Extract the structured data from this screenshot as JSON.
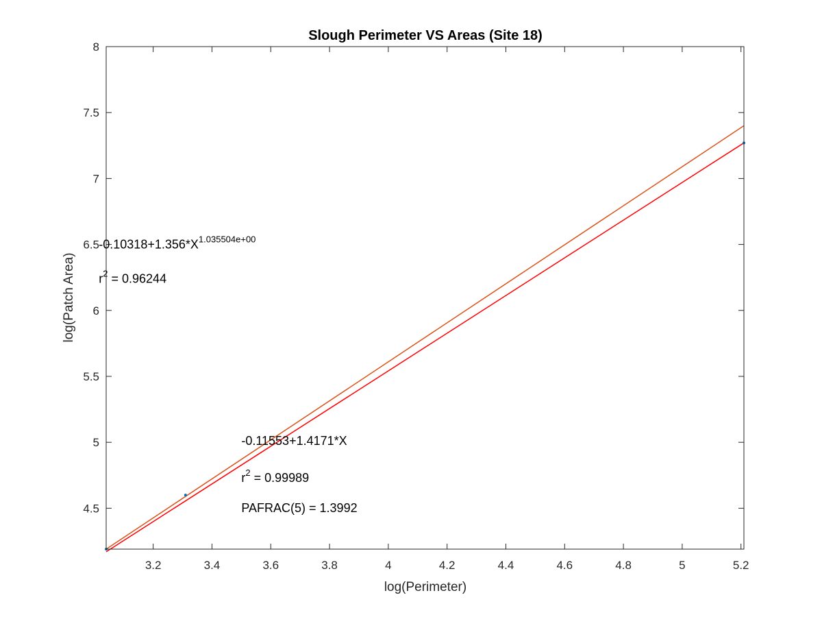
{
  "chart_data": {
    "type": "scatter",
    "title": "Slough Perimeter VS Areas (Site 18)",
    "xlabel": "log(Perimeter)",
    "ylabel": "log(Patch Area)",
    "xlim": [
      3.04,
      5.21
    ],
    "ylim": [
      4.19,
      8.0
    ],
    "xticks": [
      "3.2",
      "3.4",
      "3.6",
      "3.8",
      "4",
      "4.2",
      "4.4",
      "4.6",
      "4.8",
      "5",
      "5.2"
    ],
    "xtick_values": [
      3.2,
      3.4,
      3.6,
      3.8,
      4.0,
      4.2,
      4.4,
      4.6,
      4.8,
      5.0,
      5.2
    ],
    "yticks": [
      "4.5",
      "5",
      "5.5",
      "6",
      "6.5",
      "7",
      "7.5",
      "8"
    ],
    "ytick_values": [
      4.5,
      5.0,
      5.5,
      6.0,
      6.5,
      7.0,
      7.5,
      8.0
    ],
    "grid": false,
    "points": {
      "color": "#0072BD",
      "x": [
        3.04,
        3.31,
        5.21
      ],
      "y": [
        4.19,
        4.6,
        7.27
      ]
    },
    "lines": [
      {
        "color": "#D95319",
        "x": [
          3.04,
          5.21
        ],
        "y": [
          4.19,
          7.4
        ]
      },
      {
        "color": "#FF0000",
        "x": [
          3.04,
          5.21
        ],
        "y": [
          4.17,
          7.27
        ]
      }
    ],
    "annotations": {
      "power_fit": {
        "base": "-0.10318+1.356*X",
        "exponent": "1.035504e+00",
        "x": 3.015,
        "y": 6.47
      },
      "power_r2": {
        "prefix": "r",
        "exponent": "2",
        "suffix": " = 0.96244",
        "x": 3.015,
        "y": 6.21
      },
      "linear_fit": {
        "text": "-0.11553+1.4171*X",
        "x": 3.5,
        "y": 4.98
      },
      "linear_r2": {
        "prefix": "r",
        "exponent": "2",
        "suffix": " = 0.99989",
        "x": 3.5,
        "y": 4.7
      },
      "pafrac": {
        "text": "PAFRAC(5) = 1.3992",
        "x": 3.5,
        "y": 4.47
      }
    }
  }
}
